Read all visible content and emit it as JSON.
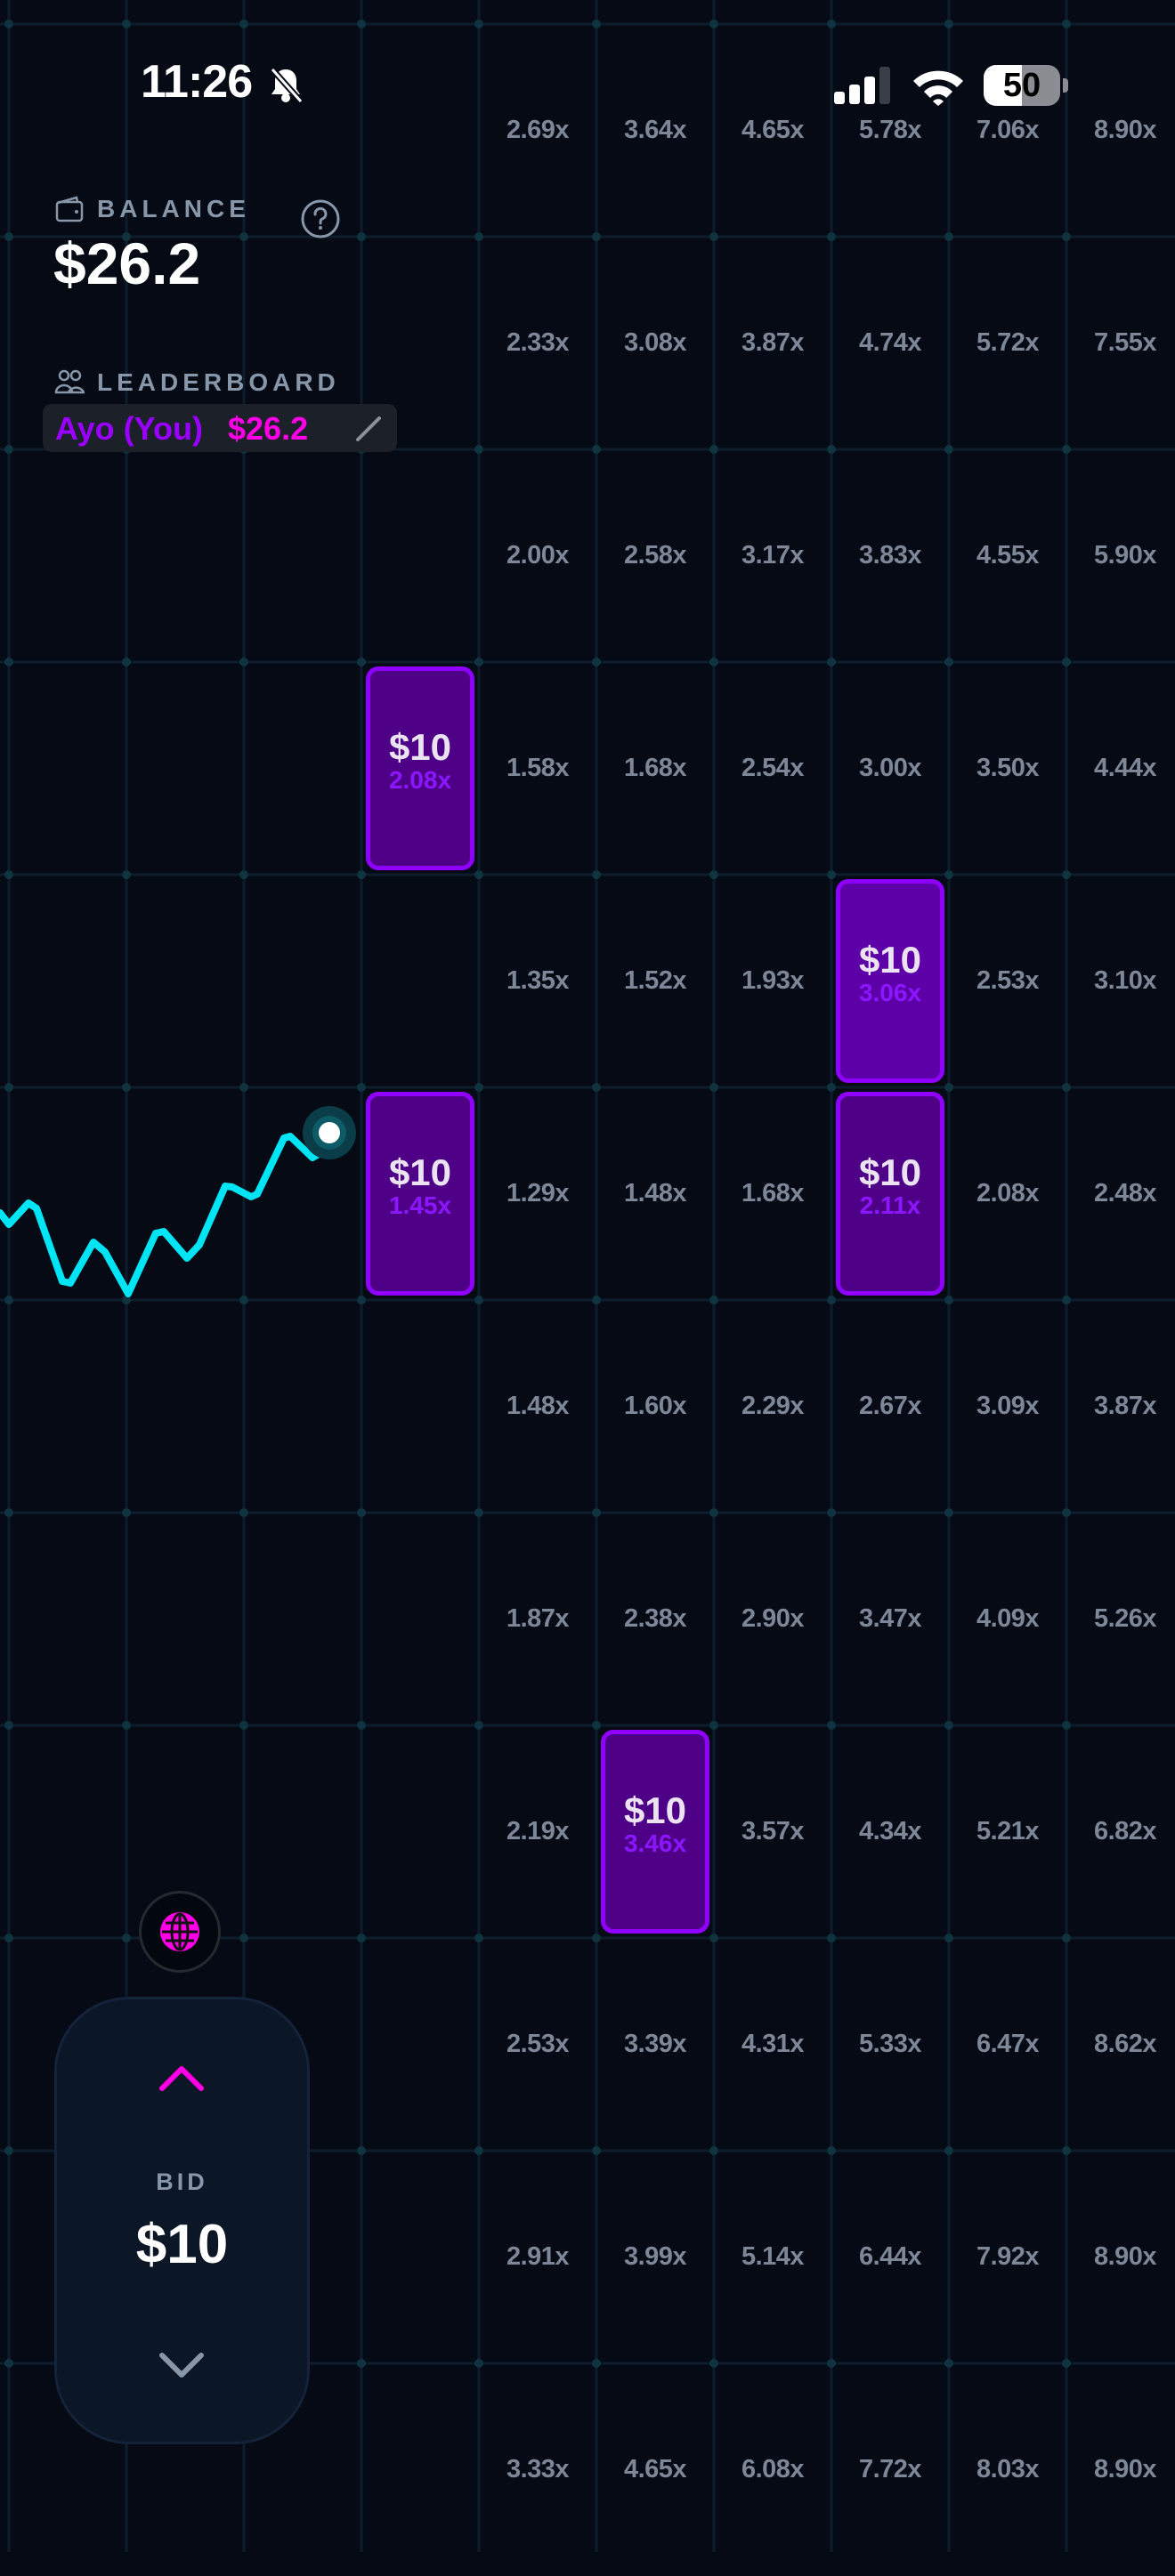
{
  "status_bar": {
    "time": "11:26",
    "battery": "50",
    "battery_level": 0.5,
    "icons": [
      "bell-slash-icon",
      "cellular-signal-icon",
      "wifi-icon",
      "battery-icon"
    ]
  },
  "balance": {
    "label": "BALANCE",
    "value": "$26.2",
    "icon": "wallet-icon",
    "help_icon": "question-circle-icon"
  },
  "leaderboard": {
    "label": "LEADERBOARD",
    "icon": "users-icon",
    "entry": {
      "name": "Ayo (You)",
      "value": "$26.2"
    },
    "edit_icon": "pencil-icon"
  },
  "colors": {
    "background": "#050a14",
    "line": "#00e5f5",
    "card_border": "#8f00ff",
    "card_fill": "#4e0086",
    "name": "#9a00ff",
    "accent": "#ff00e6",
    "multiplier_text": "#7d8797"
  },
  "grid": {
    "rows": [
      {
        "cells": [
          null,
          "2.69x",
          "3.64x",
          "4.65x",
          "5.78x",
          "7.06x",
          "8.90x"
        ]
      },
      {
        "cells": [
          null,
          "2.33x",
          "3.08x",
          "3.87x",
          "4.74x",
          "5.72x",
          "7.55x"
        ]
      },
      {
        "cells": [
          null,
          "2.00x",
          "2.58x",
          "3.17x",
          "3.83x",
          "4.55x",
          "5.90x"
        ]
      },
      {
        "cells": [
          {
            "amount": "$10",
            "mult": "2.08x"
          },
          "1.58x",
          "1.68x",
          "2.54x",
          "3.00x",
          "3.50x",
          "4.44x"
        ]
      },
      {
        "cells": [
          null,
          "1.35x",
          "1.52x",
          "1.93x",
          {
            "amount": "$10",
            "mult": "3.06x",
            "bright": true
          },
          "2.53x",
          "3.10x"
        ]
      },
      {
        "cells": [
          {
            "amount": "$10",
            "mult": "1.45x"
          },
          "1.29x",
          "1.48x",
          "1.68x",
          {
            "amount": "$10",
            "mult": "2.11x"
          },
          "2.08x",
          "2.48x"
        ]
      },
      {
        "cells": [
          null,
          "1.48x",
          "1.60x",
          "2.29x",
          "2.67x",
          "3.09x",
          "3.87x"
        ]
      },
      {
        "cells": [
          null,
          "1.87x",
          "2.38x",
          "2.90x",
          "3.47x",
          "4.09x",
          "5.26x"
        ]
      },
      {
        "cells": [
          null,
          "2.19x",
          {
            "amount": "$10",
            "mult": "3.46x"
          },
          "3.57x",
          "4.34x",
          "5.21x",
          "6.82x"
        ]
      },
      {
        "cells": [
          null,
          "2.53x",
          "3.39x",
          "4.31x",
          "5.33x",
          "6.47x",
          "8.62x"
        ]
      },
      {
        "cells": [
          null,
          "2.91x",
          "3.99x",
          "5.14x",
          "6.44x",
          "7.92x",
          "8.90x"
        ]
      },
      {
        "cells": [
          null,
          "3.33x",
          "4.65x",
          "6.08x",
          "7.72x",
          "8.03x",
          "8.90x"
        ]
      }
    ]
  },
  "bid": {
    "label": "BID",
    "value": "$10",
    "up_icon": "chevron-up-icon",
    "down_icon": "chevron-down-icon"
  },
  "globe_button": {
    "icon": "globe-icon"
  }
}
